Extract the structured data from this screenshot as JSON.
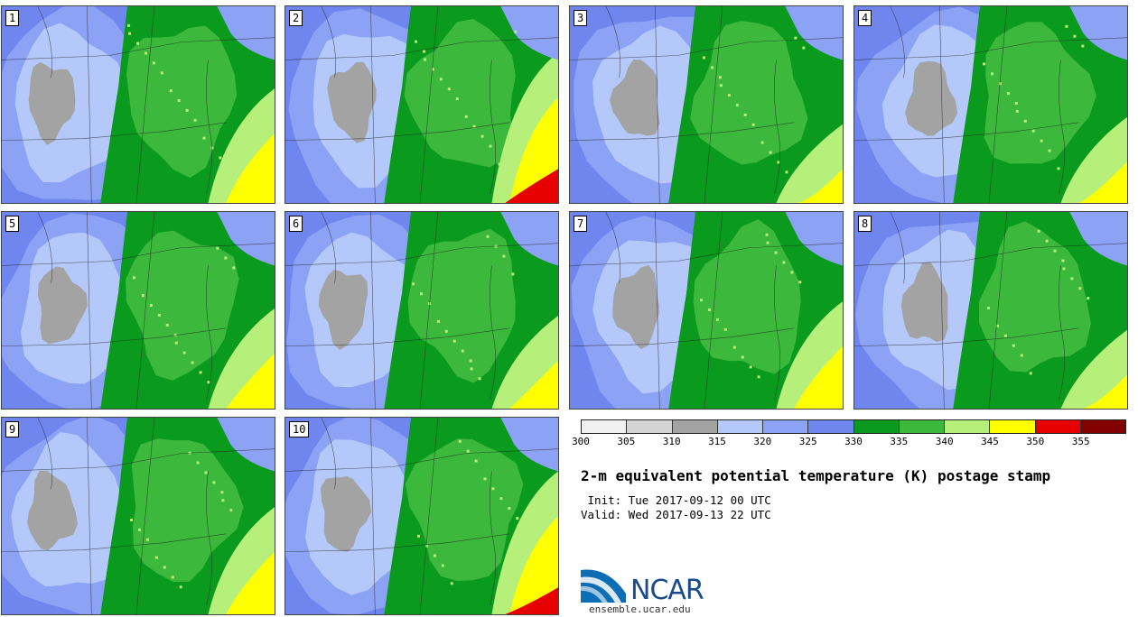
{
  "panels": [
    {
      "label": "1"
    },
    {
      "label": "2"
    },
    {
      "label": "3"
    },
    {
      "label": "4"
    },
    {
      "label": "5"
    },
    {
      "label": "6"
    },
    {
      "label": "7"
    },
    {
      "label": "8"
    },
    {
      "label": "9"
    },
    {
      "label": "10"
    }
  ],
  "colorbar": {
    "colors": [
      "#f0f0f0",
      "#d4d4d4",
      "#a3a3a3",
      "#b4c8fa",
      "#8ca2f5",
      "#6f86ee",
      "#0a9a1e",
      "#3cb83c",
      "#b6f07a",
      "#ffff00",
      "#e60000",
      "#820000"
    ],
    "ticks": [
      "300",
      "305",
      "310",
      "315",
      "320",
      "325",
      "330",
      "335",
      "340",
      "345",
      "350",
      "355"
    ]
  },
  "title": "2-m equivalent potential temperature (K) postage stamp",
  "init_line": " Init: Tue 2017-09-12 00 UTC",
  "valid_line": "Valid: Wed 2017-09-13 22 UTC",
  "logo": {
    "text": "NCAR",
    "url": "ensemble.ucar.edu"
  }
}
